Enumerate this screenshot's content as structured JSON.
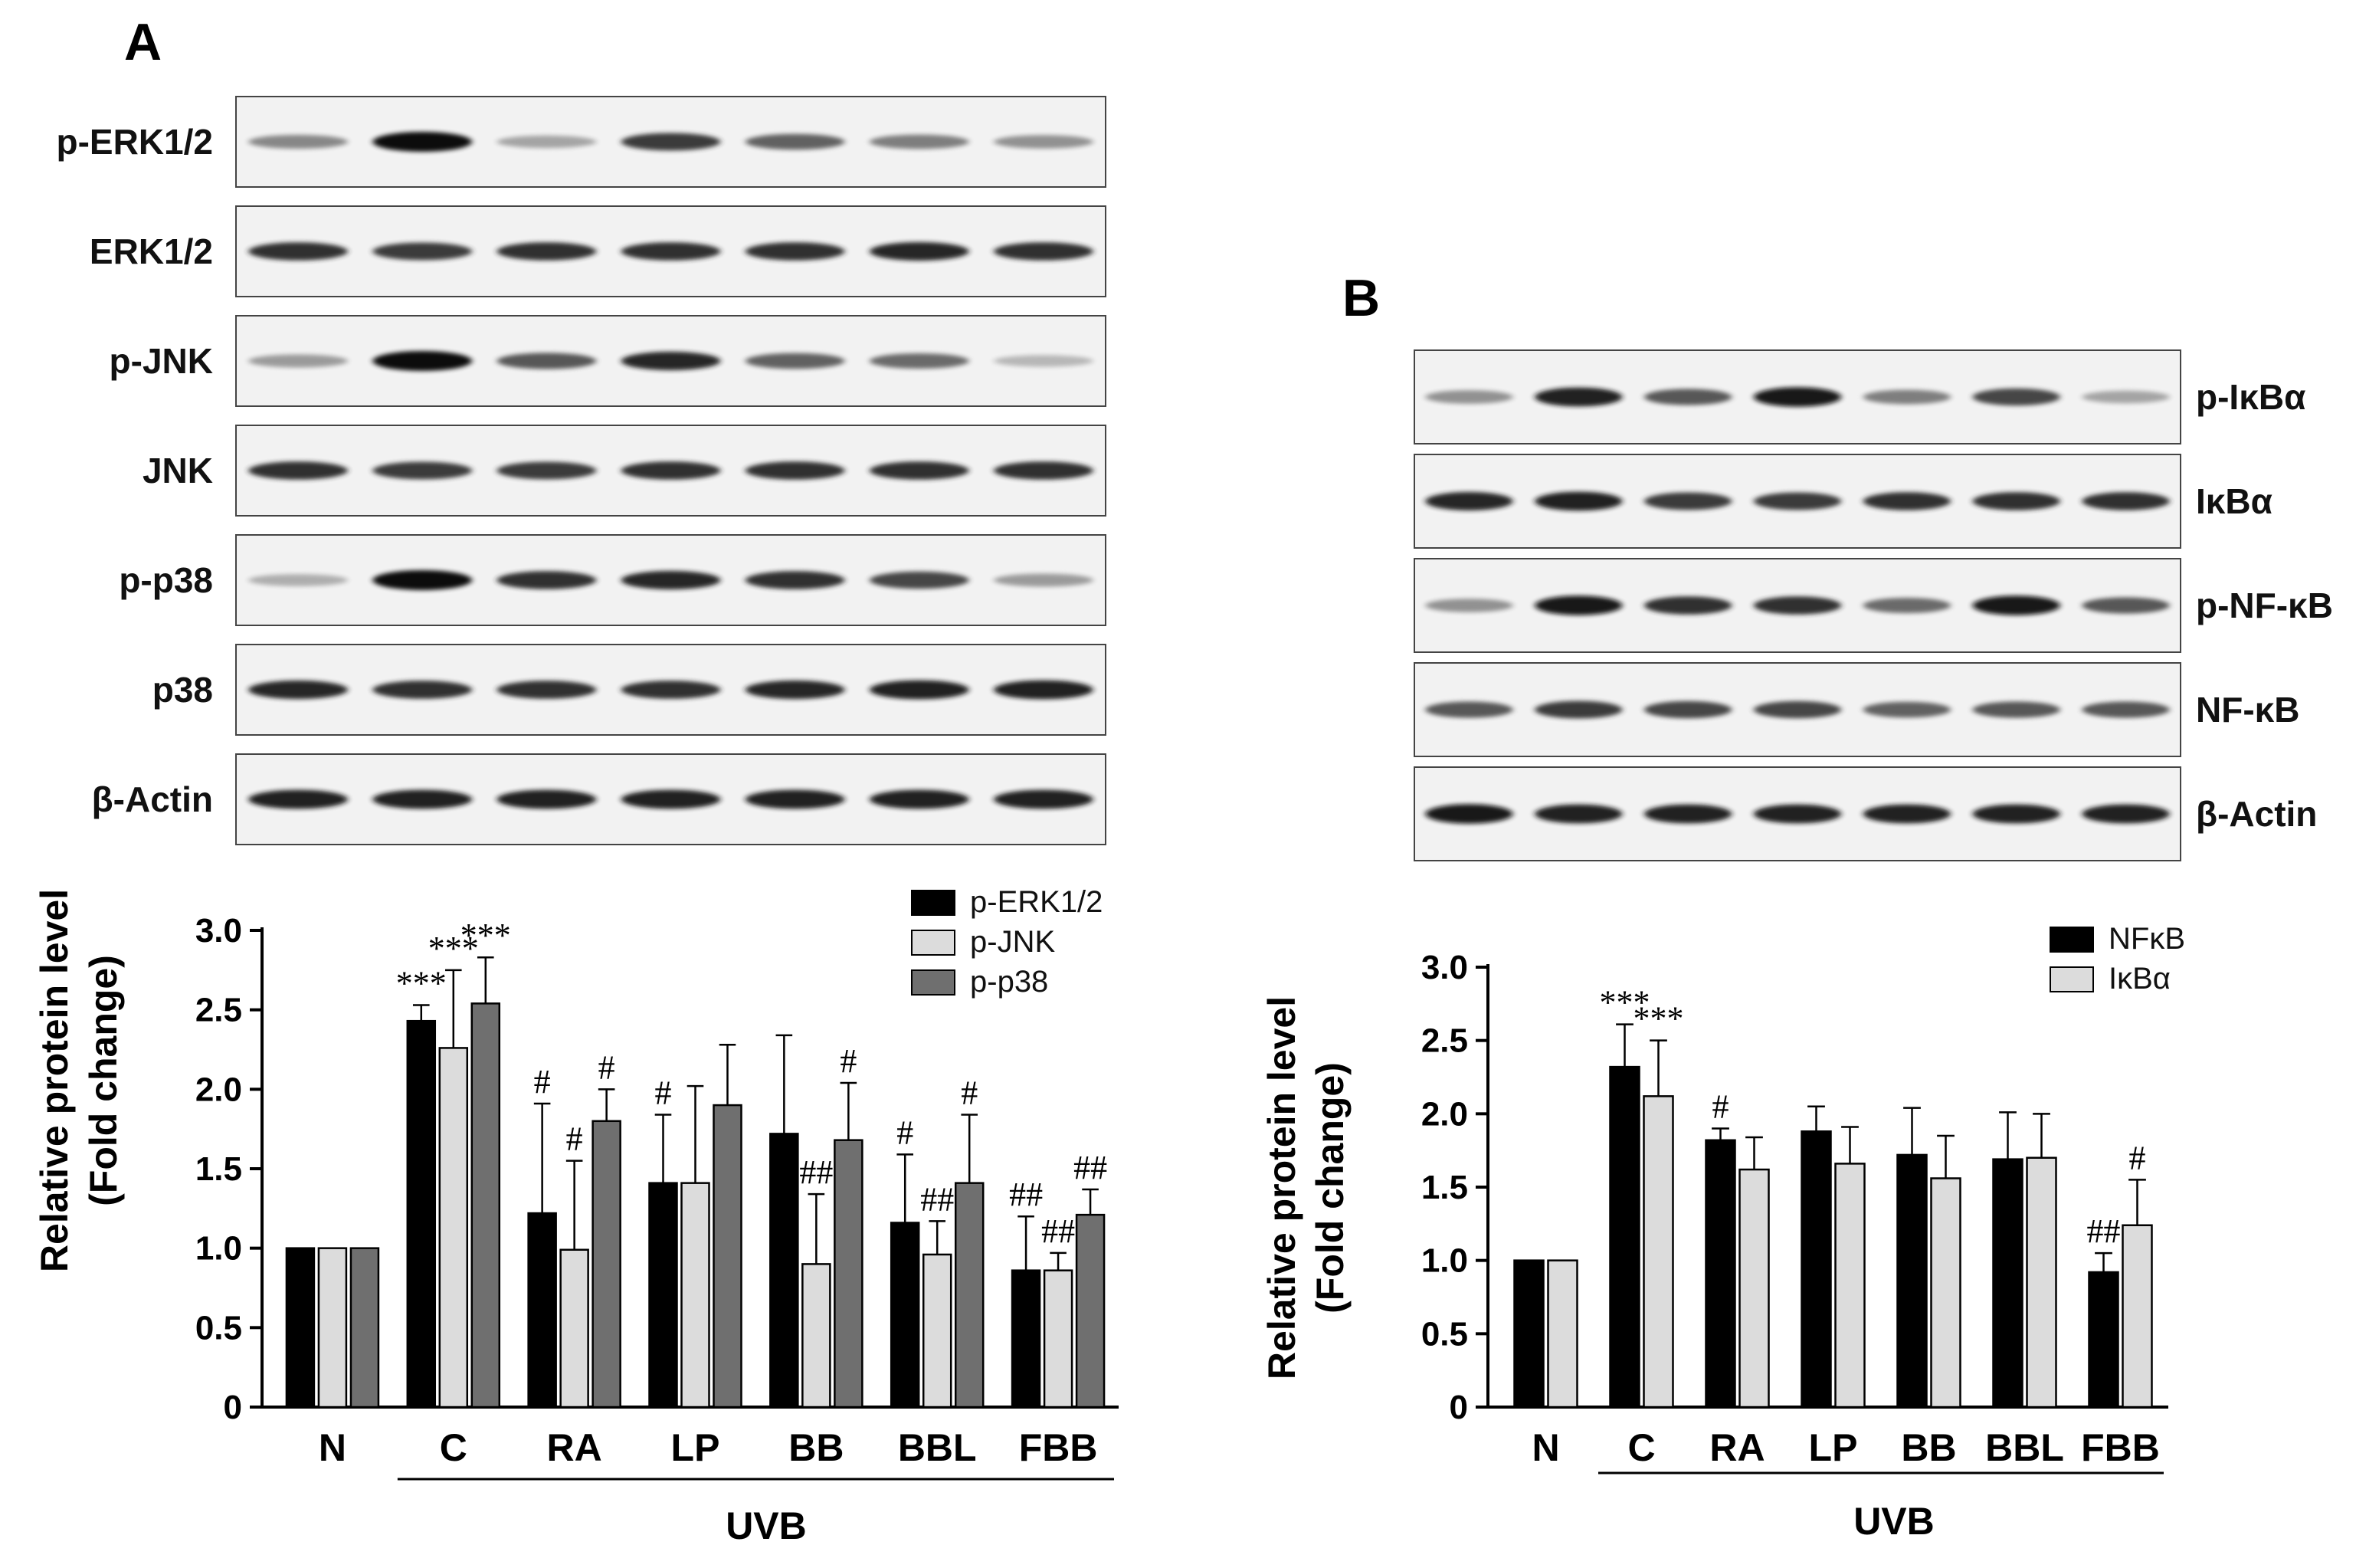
{
  "panel_a": {
    "letter": "A",
    "blot_rows": [
      "p-ERK1/2",
      "ERK1/2",
      "p-JNK",
      "JNK",
      "p-p38",
      "p38",
      "β-Actin"
    ],
    "blot_intensity": [
      [
        0.35,
        1.0,
        0.2,
        0.75,
        0.55,
        0.4,
        0.3
      ],
      [
        0.8,
        0.75,
        0.8,
        0.8,
        0.8,
        0.85,
        0.8
      ],
      [
        0.25,
        1.0,
        0.6,
        0.85,
        0.55,
        0.5,
        0.1
      ],
      [
        0.8,
        0.75,
        0.75,
        0.8,
        0.8,
        0.8,
        0.8
      ],
      [
        0.15,
        1.0,
        0.8,
        0.85,
        0.8,
        0.7,
        0.25
      ],
      [
        0.85,
        0.8,
        0.8,
        0.8,
        0.85,
        0.9,
        0.9
      ],
      [
        0.9,
        0.9,
        0.9,
        0.9,
        0.9,
        0.9,
        0.9
      ]
    ]
  },
  "panel_b": {
    "letter": "B",
    "blot_rows": [
      "p-IκBα",
      "IκBα",
      "p-NF-κB",
      "NF-κB",
      "β-Actin"
    ],
    "blot_intensity": [
      [
        0.3,
        0.9,
        0.6,
        0.95,
        0.4,
        0.7,
        0.2
      ],
      [
        0.85,
        0.9,
        0.75,
        0.75,
        0.8,
        0.8,
        0.8
      ],
      [
        0.3,
        0.95,
        0.8,
        0.8,
        0.5,
        0.95,
        0.6
      ],
      [
        0.6,
        0.75,
        0.7,
        0.7,
        0.55,
        0.6,
        0.6
      ],
      [
        0.95,
        0.9,
        0.9,
        0.9,
        0.9,
        0.9,
        0.9
      ]
    ]
  },
  "colors": {
    "black_series": "#000000",
    "light_series": "#dcdcdc",
    "grey_series": "#6f6f6f",
    "blot_background": "#f2f2f2"
  },
  "chart_data": [
    {
      "type": "bar",
      "panel": "A",
      "categories": [
        "N",
        "C",
        "RA",
        "LP",
        "BB",
        "BBL",
        "FBB"
      ],
      "group_label": "UVB",
      "ylabel_line1": "Relative protein level",
      "ylabel_line2": "(Fold change)",
      "ylim": [
        0,
        3.0
      ],
      "yticks": [
        "0",
        "0.5",
        "1.0",
        "1.5",
        "2.0",
        "2.5",
        "3.0"
      ],
      "legend_position": "top-right",
      "series": [
        {
          "name": "p-ERK1/2",
          "color": "#000000",
          "values": [
            1.0,
            2.43,
            1.22,
            1.41,
            1.72,
            1.16,
            0.86
          ],
          "errors": [
            0,
            0.1,
            0.69,
            0.43,
            0.62,
            0.43,
            0.34
          ],
          "annotations": [
            "",
            "***",
            "#",
            "#",
            "",
            "#",
            "##"
          ]
        },
        {
          "name": "p-JNK",
          "color": "#dcdcdc",
          "values": [
            1.0,
            2.26,
            0.99,
            1.41,
            0.9,
            0.96,
            0.86
          ],
          "errors": [
            0,
            0.49,
            0.56,
            0.61,
            0.44,
            0.21,
            0.11
          ],
          "annotations": [
            "",
            "***",
            "#",
            "",
            "##",
            "##",
            "##"
          ]
        },
        {
          "name": "p-p38",
          "color": "#6f6f6f",
          "values": [
            1.0,
            2.54,
            1.8,
            1.9,
            1.68,
            1.41,
            1.21
          ],
          "errors": [
            0,
            0.29,
            0.2,
            0.38,
            0.36,
            0.43,
            0.16
          ],
          "annotations": [
            "",
            "***",
            "#",
            "",
            "#",
            "#",
            "##"
          ]
        }
      ]
    },
    {
      "type": "bar",
      "panel": "B",
      "categories": [
        "N",
        "C",
        "RA",
        "LP",
        "BB",
        "BBL",
        "FBB"
      ],
      "group_label": "UVB",
      "ylabel_line1": "Relative protein level",
      "ylabel_line2": "(Fold change)",
      "ylim": [
        0,
        3.0
      ],
      "yticks": [
        "0",
        "0.5",
        "1.0",
        "1.5",
        "2.0",
        "2.5",
        "3.0"
      ],
      "legend_position": "top-right",
      "series": [
        {
          "name": "NFκB",
          "color": "#000000",
          "values": [
            1.0,
            2.32,
            1.82,
            1.88,
            1.72,
            1.69,
            0.92
          ],
          "errors": [
            0,
            0.29,
            0.08,
            0.17,
            0.32,
            0.32,
            0.13
          ],
          "annotations": [
            "",
            "***",
            "#",
            "",
            "",
            "",
            "##"
          ]
        },
        {
          "name": "IκBα",
          "color": "#dcdcdc",
          "values": [
            1.0,
            2.12,
            1.62,
            1.66,
            1.56,
            1.7,
            1.24
          ],
          "errors": [
            0,
            0.38,
            0.22,
            0.25,
            0.29,
            0.3,
            0.31
          ],
          "annotations": [
            "",
            "***",
            "",
            "",
            "",
            "",
            "#"
          ]
        }
      ]
    }
  ]
}
